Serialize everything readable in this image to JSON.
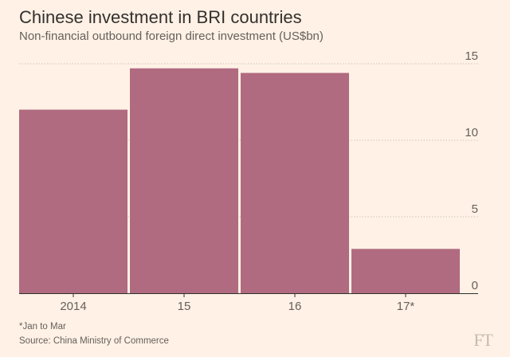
{
  "header": {
    "title": "Chinese investment in BRI countries",
    "subtitle": "Non-financial outbound foreign direct investment (US$bn)"
  },
  "footer": {
    "note": "*Jan to Mar",
    "source": "Source: China Ministry of Commerce",
    "logo": "FT"
  },
  "colors": {
    "bar": "#b06b80",
    "gridline": "#cec6b9",
    "axis": "#33302e",
    "tick_label": "#66605c"
  },
  "chart_data": {
    "type": "bar",
    "title": "Chinese investment in BRI countries",
    "subtitle": "Non-financial outbound foreign direct investment (US$bn)",
    "categories": [
      "2014",
      "15",
      "16",
      "17*"
    ],
    "values": [
      12.0,
      14.7,
      14.4,
      2.9
    ],
    "xlabel": "",
    "ylabel": "US$bn",
    "ylim": [
      0,
      15
    ],
    "yticks": [
      0,
      5,
      10,
      15
    ],
    "ytick_labels": [
      "0",
      "5",
      "10",
      "15"
    ],
    "grid": true,
    "y_axis_position": "right"
  }
}
